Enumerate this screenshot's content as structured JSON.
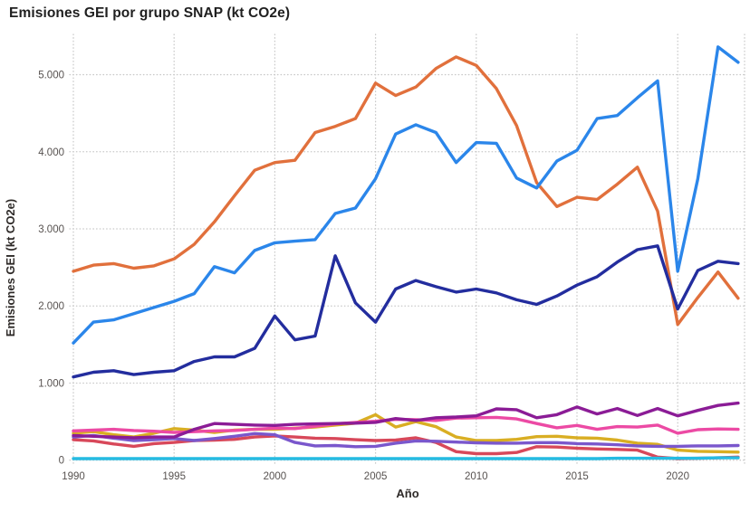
{
  "title": "Emisiones GEI por grupo SNAP (kt CO2e)",
  "chart_data": {
    "type": "line",
    "title": "Emisiones GEI por grupo SNAP (kt CO2e)",
    "xlabel": "Año",
    "ylabel": "Emisiones GEI (kt CO2e)",
    "legend": "none",
    "grid": "dotted",
    "xlim": [
      1990,
      2023
    ],
    "ylim": [
      0,
      5500
    ],
    "x_ticks": [
      1990,
      1995,
      2000,
      2005,
      2010,
      2015,
      2020
    ],
    "y_ticks": [
      0,
      1000,
      2000,
      3000,
      4000,
      5000
    ],
    "y_tick_labels": [
      "0",
      "1.000",
      "2.000",
      "3.000",
      "4.000",
      "5.000"
    ],
    "x": [
      1990,
      1991,
      1992,
      1993,
      1994,
      1995,
      1996,
      1997,
      1998,
      1999,
      2000,
      2001,
      2002,
      2003,
      2004,
      2005,
      2006,
      2007,
      2008,
      2009,
      2010,
      2011,
      2012,
      2013,
      2014,
      2015,
      2016,
      2017,
      2018,
      2019,
      2020,
      2021,
      2022,
      2023
    ],
    "series": [
      {
        "name": "line-yellow",
        "color": "#D9AE23",
        "values": [
          350,
          370,
          330,
          300,
          350,
          410,
          390,
          360,
          390,
          400,
          400,
          415,
          430,
          455,
          480,
          590,
          430,
          500,
          434,
          300,
          255,
          255,
          270,
          305,
          310,
          290,
          285,
          260,
          220,
          205,
          130,
          115,
          110,
          105
        ]
      },
      {
        "name": "line-red",
        "color": "#D8485A",
        "values": [
          265,
          250,
          210,
          180,
          215,
          230,
          255,
          260,
          270,
          300,
          315,
          300,
          285,
          280,
          265,
          255,
          260,
          290,
          230,
          110,
          85,
          85,
          100,
          175,
          170,
          155,
          145,
          140,
          130,
          40,
          20,
          25,
          30,
          40
        ]
      },
      {
        "name": "line-violet",
        "color": "#7A57CC",
        "values": [
          300,
          320,
          285,
          255,
          265,
          280,
          255,
          280,
          310,
          345,
          330,
          230,
          185,
          190,
          175,
          180,
          220,
          250,
          245,
          235,
          225,
          220,
          220,
          228,
          228,
          215,
          210,
          200,
          185,
          180,
          180,
          185,
          185,
          190
        ]
      },
      {
        "name": "line-pink",
        "color": "#EC4AA4",
        "values": [
          380,
          390,
          400,
          385,
          375,
          360,
          370,
          380,
          385,
          400,
          415,
          410,
          440,
          470,
          490,
          505,
          530,
          525,
          515,
          545,
          550,
          555,
          535,
          475,
          420,
          450,
          400,
          435,
          430,
          455,
          350,
          395,
          405,
          400
        ]
      },
      {
        "name": "line-purple",
        "color": "#8B1C96",
        "values": [
          320,
          310,
          300,
          290,
          300,
          300,
          400,
          475,
          465,
          455,
          450,
          465,
          470,
          475,
          480,
          490,
          540,
          515,
          550,
          560,
          575,
          665,
          655,
          550,
          590,
          690,
          600,
          670,
          580,
          670,
          575,
          645,
          710,
          740
        ]
      },
      {
        "name": "line-cyan",
        "color": "#25BBE2",
        "values": [
          20,
          20,
          20,
          20,
          20,
          20,
          20,
          20,
          20,
          20,
          20,
          20,
          20,
          20,
          20,
          20,
          20,
          20,
          20,
          20,
          20,
          20,
          20,
          20,
          20,
          20,
          20,
          25,
          25,
          25,
          25,
          25,
          30,
          30
        ]
      },
      {
        "name": "line-orange",
        "color": "#E1703C",
        "values": [
          2450,
          2530,
          2550,
          2490,
          2520,
          2610,
          2800,
          3090,
          3430,
          3760,
          3860,
          3890,
          4250,
          4330,
          4430,
          4890,
          4730,
          4840,
          5080,
          5230,
          5120,
          4820,
          4340,
          3600,
          3290,
          3410,
          3380,
          3580,
          3800,
          3230,
          1760,
          2110,
          2440,
          2100
        ]
      },
      {
        "name": "line-navy",
        "color": "#232D9E",
        "values": [
          1080,
          1140,
          1160,
          1110,
          1140,
          1160,
          1280,
          1340,
          1340,
          1450,
          1870,
          1560,
          1610,
          2650,
          2040,
          1790,
          2220,
          2330,
          2250,
          2180,
          2220,
          2170,
          2080,
          2020,
          2130,
          2270,
          2380,
          2570,
          2730,
          2780,
          1960,
          2460,
          2580,
          2550
        ]
      },
      {
        "name": "line-blue",
        "color": "#2B86EA",
        "values": [
          1520,
          1790,
          1820,
          1900,
          1980,
          2060,
          2160,
          2510,
          2430,
          2720,
          2820,
          2840,
          2860,
          3200,
          3270,
          3650,
          4230,
          4350,
          4250,
          3860,
          4120,
          4110,
          3660,
          3530,
          3880,
          4020,
          4430,
          4470,
          4700,
          4920,
          2450,
          3650,
          5360,
          5160
        ]
      }
    ]
  }
}
